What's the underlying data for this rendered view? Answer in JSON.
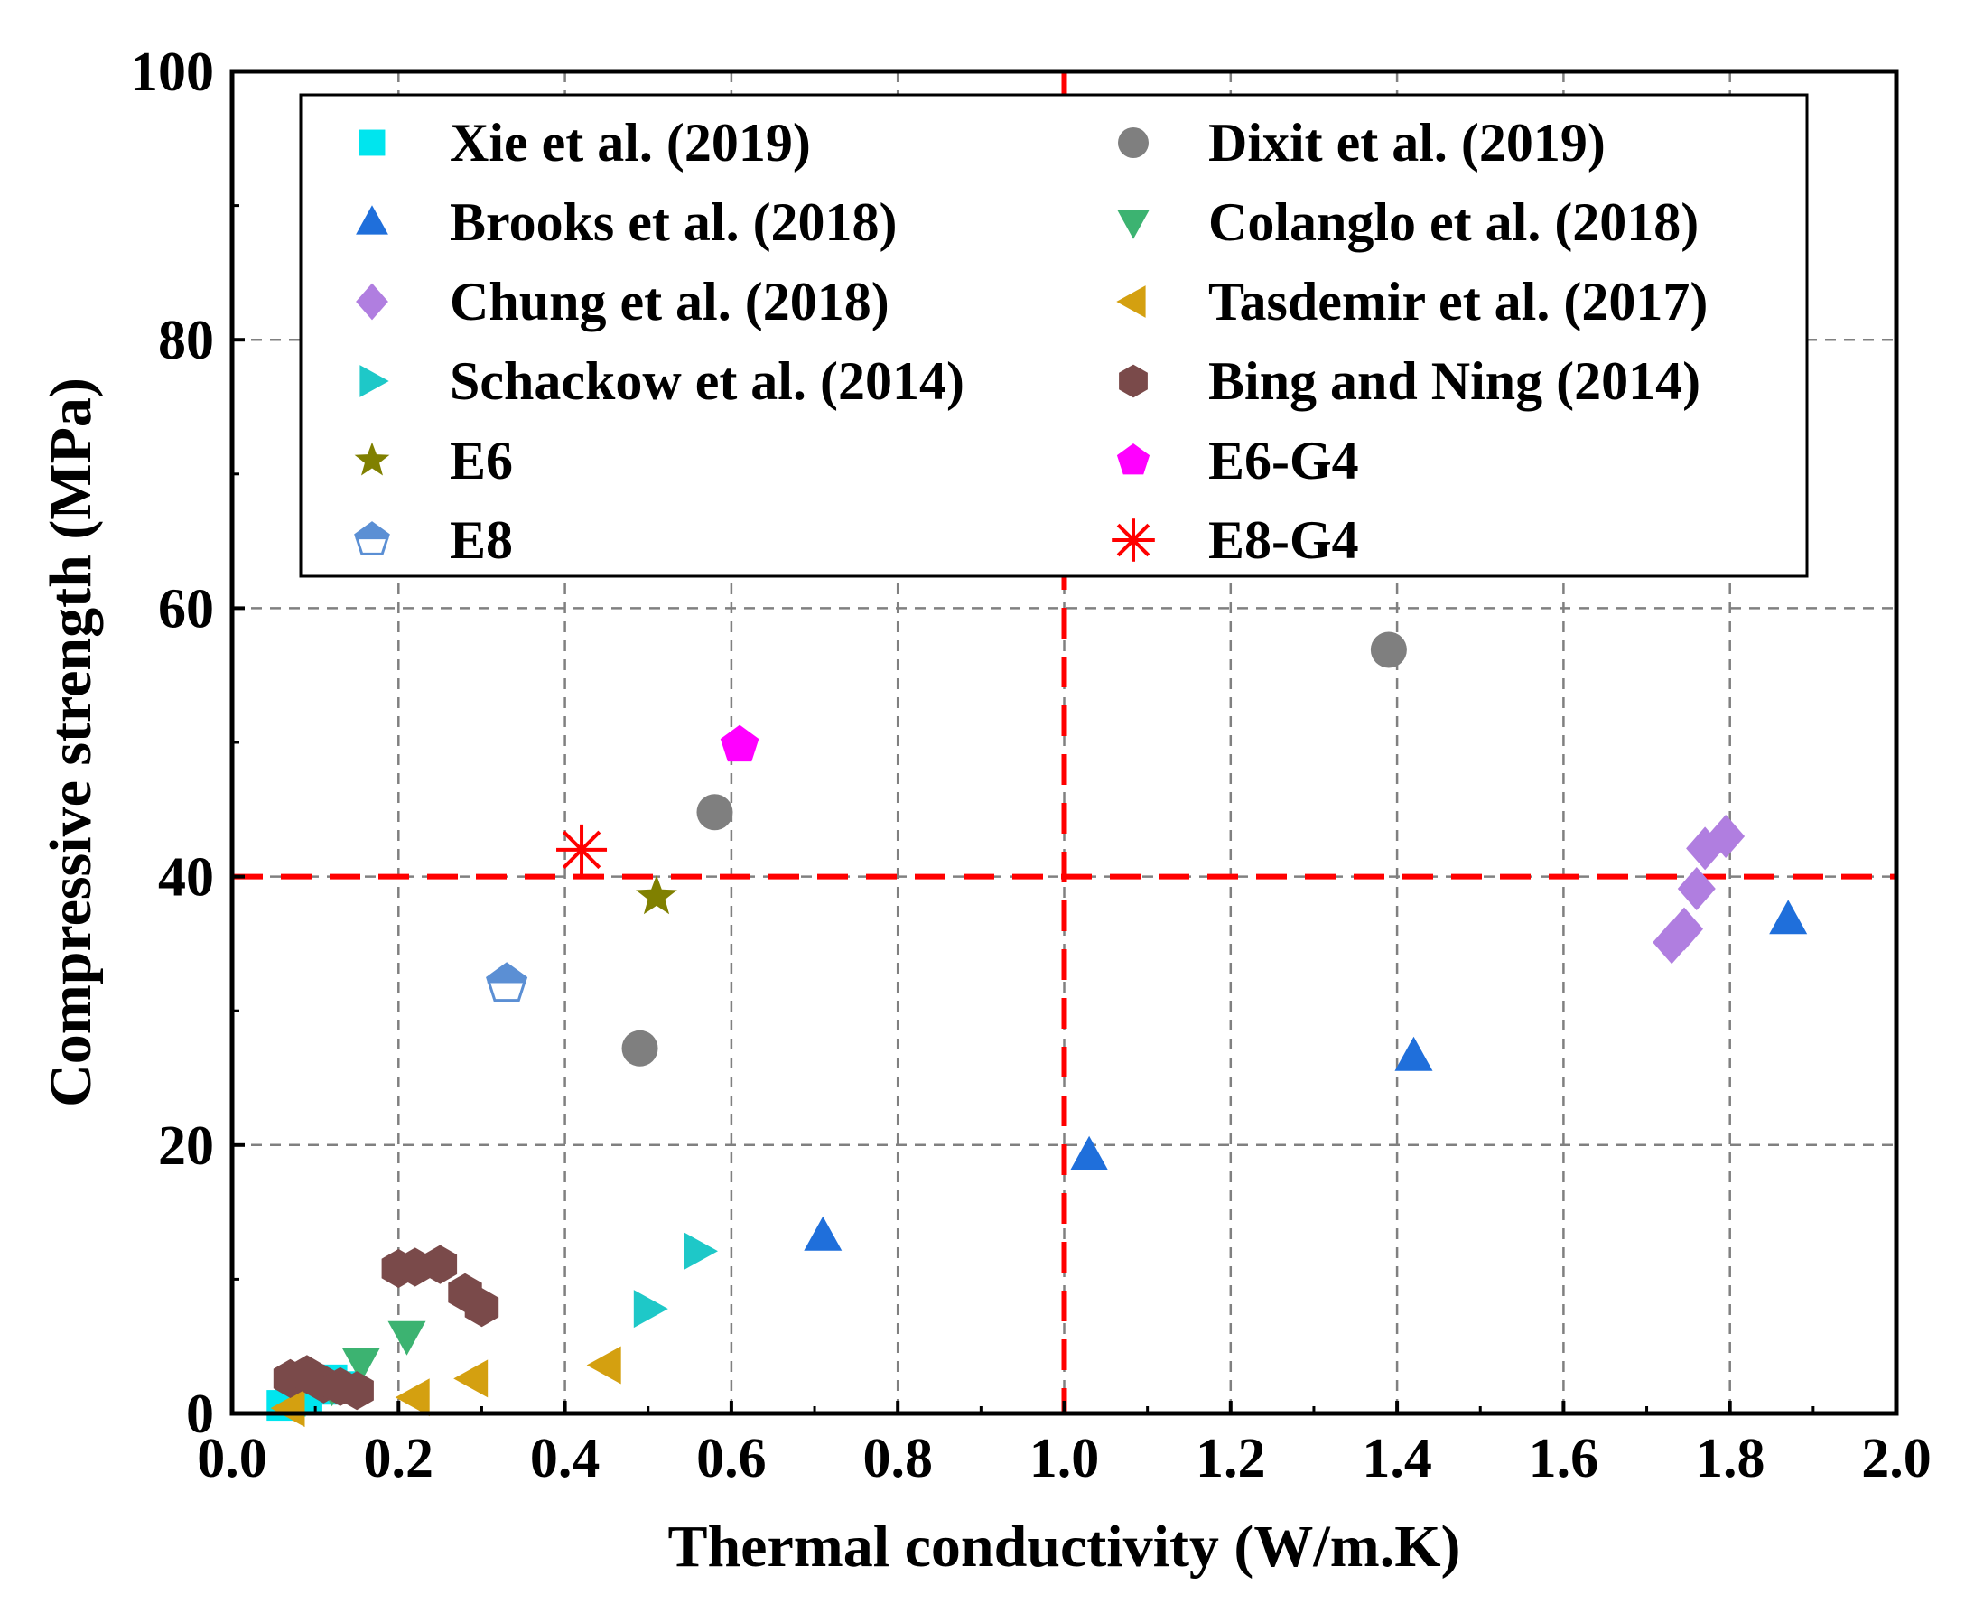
{
  "chart_data": {
    "type": "scatter",
    "title": "",
    "xlabel": "Thermal conductivity (W/m.K)",
    "ylabel": "Compressive strength (MPa)",
    "xlim": [
      0.0,
      2.0
    ],
    "ylim": [
      0,
      100
    ],
    "xticks": [
      "0.0",
      "0.2",
      "0.4",
      "0.6",
      "0.8",
      "1.0",
      "1.2",
      "1.4",
      "1.6",
      "1.8",
      "2.0"
    ],
    "yticks": [
      "0",
      "20",
      "40",
      "60",
      "80",
      "100"
    ],
    "grid": true,
    "reference_lines": {
      "x": 1.0,
      "y": 40,
      "color": "#ff0000",
      "style": "dashed"
    },
    "legend_position": "top",
    "series": [
      {
        "name": "Xie et al. (2019)",
        "marker": "square",
        "color": "#00e5ee",
        "points": [
          [
            0.06,
            0.6
          ],
          [
            0.07,
            0.9
          ],
          [
            0.09,
            1.2
          ],
          [
            0.11,
            1.8
          ],
          [
            0.12,
            2.5
          ],
          [
            0.13,
            2.0
          ]
        ]
      },
      {
        "name": "Dixit et al. (2019)",
        "marker": "circle",
        "color": "#7f7f7f",
        "points": [
          [
            0.49,
            27.2
          ],
          [
            0.58,
            44.8
          ],
          [
            1.39,
            56.9
          ]
        ]
      },
      {
        "name": "Brooks et al. (2018)",
        "marker": "triangle-up",
        "color": "#1f6fdb",
        "points": [
          [
            0.71,
            13.2
          ],
          [
            1.03,
            19.2
          ],
          [
            1.42,
            26.6
          ],
          [
            1.87,
            36.8
          ]
        ]
      },
      {
        "name": "Colanglo et al. (2018)",
        "marker": "triangle-down",
        "color": "#3cb371",
        "points": [
          [
            0.12,
            2.0
          ],
          [
            0.155,
            3.8
          ],
          [
            0.21,
            5.8
          ]
        ]
      },
      {
        "name": "Chung et al. (2018)",
        "marker": "diamond",
        "color": "#b07ee0",
        "points": [
          [
            1.73,
            35.1
          ],
          [
            1.745,
            36.1
          ],
          [
            1.76,
            39.1
          ],
          [
            1.77,
            42.1
          ],
          [
            1.795,
            43.0
          ]
        ]
      },
      {
        "name": "Tasdemir et al. (2017)",
        "marker": "triangle-left",
        "color": "#d4a010",
        "points": [
          [
            0.07,
            0.4
          ],
          [
            0.22,
            1.2
          ],
          [
            0.29,
            2.6
          ],
          [
            0.45,
            3.6
          ]
        ]
      },
      {
        "name": "Schackow et al. (2014)",
        "marker": "triangle-right",
        "color": "#1ec8c8",
        "points": [
          [
            0.5,
            7.8
          ],
          [
            0.56,
            12.1
          ]
        ]
      },
      {
        "name": "Bing and Ning (2014)",
        "marker": "hexagon",
        "color": "#7a4a4a",
        "points": [
          [
            0.07,
            2.6
          ],
          [
            0.09,
            2.9
          ],
          [
            0.11,
            2.2
          ],
          [
            0.13,
            2.0
          ],
          [
            0.15,
            1.7
          ],
          [
            0.2,
            10.8
          ],
          [
            0.22,
            10.9
          ],
          [
            0.25,
            11.1
          ],
          [
            0.28,
            9.0
          ],
          [
            0.3,
            7.9
          ]
        ]
      },
      {
        "name": "E6",
        "marker": "star",
        "color": "#808000",
        "points": [
          [
            0.51,
            38.5
          ]
        ]
      },
      {
        "name": "E6-G4",
        "marker": "pentagon",
        "color": "#ff00ff",
        "points": [
          [
            0.61,
            49.8
          ]
        ]
      },
      {
        "name": "E8",
        "marker": "pentagon-half",
        "color": "#5b8fd4",
        "points": [
          [
            0.33,
            32.0
          ]
        ]
      },
      {
        "name": "E8-G4",
        "marker": "asterisk",
        "color": "#ff0000",
        "points": [
          [
            0.42,
            42.0
          ]
        ]
      }
    ]
  }
}
